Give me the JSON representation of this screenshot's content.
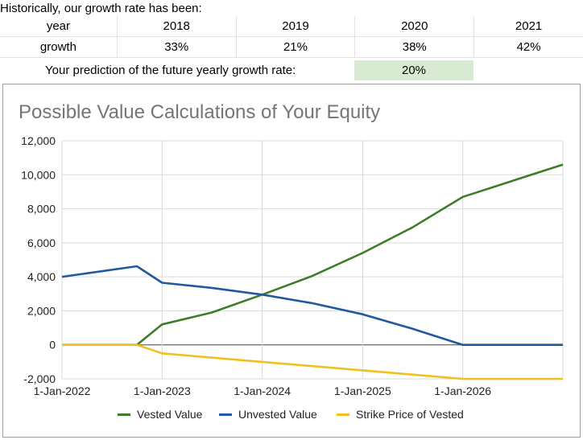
{
  "intro_text": "Historically, our growth rate has been:",
  "growth_table": {
    "row_year_label": "year",
    "years": [
      "2018",
      "2019",
      "2020",
      "2021"
    ],
    "row_growth_label": "growth",
    "growth": [
      "33%",
      "21%",
      "38%",
      "42%"
    ]
  },
  "prediction": {
    "label": "Your prediction of the future yearly growth rate:",
    "value": "20%",
    "cell_color": "#d9ead3"
  },
  "chart_data": {
    "type": "line",
    "title": "Possible Value Calculations of Your Equity",
    "xlabel": "",
    "ylabel": "",
    "x_ticks": [
      "1-Jan-2022",
      "1-Jan-2023",
      "1-Jan-2024",
      "1-Jan-2025",
      "1-Jan-2026"
    ],
    "y_ticks": [
      "12,000",
      "10,000",
      "8,000",
      "6,000",
      "4,000",
      "2,000",
      "0",
      "-2,000"
    ],
    "ylim": [
      -2000,
      12000
    ],
    "xlim": [
      "2022-01-01",
      "2027-01-01"
    ],
    "grid": true,
    "legend_position": "bottom",
    "series": [
      {
        "name": "Vested Value",
        "color": "#3d7d2a",
        "points": [
          [
            "2022-01-01",
            0
          ],
          [
            "2022-10-01",
            0
          ],
          [
            "2023-01-01",
            1200
          ],
          [
            "2023-07-01",
            1900
          ],
          [
            "2024-01-01",
            2950
          ],
          [
            "2024-07-01",
            4050
          ],
          [
            "2025-01-01",
            5400
          ],
          [
            "2025-07-01",
            6900
          ],
          [
            "2026-01-01",
            8700
          ],
          [
            "2027-01-01",
            10600
          ]
        ]
      },
      {
        "name": "Unvested Value",
        "color": "#1f5a9c",
        "points": [
          [
            "2022-01-01",
            4000
          ],
          [
            "2022-10-01",
            4620
          ],
          [
            "2023-01-01",
            3650
          ],
          [
            "2023-07-01",
            3350
          ],
          [
            "2024-01-01",
            2950
          ],
          [
            "2024-07-01",
            2450
          ],
          [
            "2025-01-01",
            1800
          ],
          [
            "2025-07-01",
            950
          ],
          [
            "2026-01-01",
            0
          ],
          [
            "2027-01-01",
            0
          ]
        ]
      },
      {
        "name": "Strike Price of Vested",
        "color": "#f2c01e",
        "points": [
          [
            "2022-01-01",
            0
          ],
          [
            "2022-10-01",
            0
          ],
          [
            "2023-01-01",
            -500
          ],
          [
            "2024-01-01",
            -1000
          ],
          [
            "2025-01-01",
            -1500
          ],
          [
            "2026-01-01",
            -2000
          ],
          [
            "2027-01-01",
            -2000
          ]
        ]
      }
    ]
  }
}
